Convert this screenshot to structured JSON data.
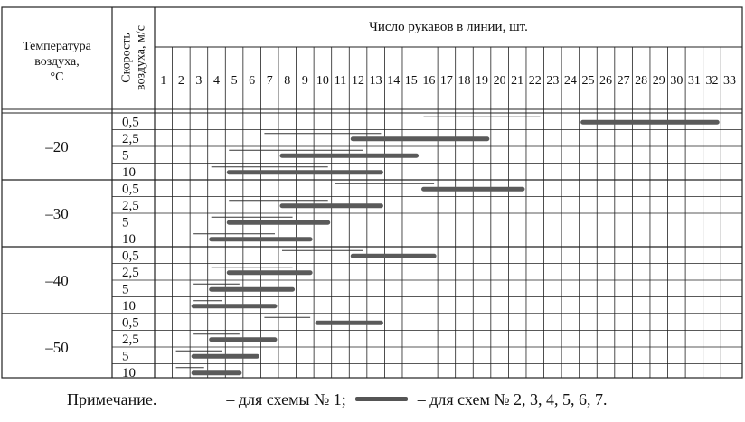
{
  "header": {
    "temperature_label_lines": [
      "Температура",
      "воздуха,",
      "°С"
    ],
    "speed_label_lines": [
      "Скорость",
      "воздуха, м/с"
    ],
    "sleeves_title": "Число рукавов в линии, шт.",
    "sleeve_numbers": [
      "1",
      "2",
      "3",
      "4",
      "5",
      "6",
      "7",
      "8",
      "9",
      "10",
      "11",
      "12",
      "13",
      "14",
      "15",
      "16",
      "17",
      "18",
      "19",
      "20",
      "21",
      "22",
      "23",
      "24",
      "25",
      "26",
      "27",
      "28",
      "29",
      "30",
      "31",
      "32",
      "33"
    ]
  },
  "groups": [
    {
      "temperature": "–20",
      "rows": [
        {
          "speed": "0,5",
          "scheme1": [
            16,
            22
          ],
          "schemes2_7": [
            25,
            32
          ]
        },
        {
          "speed": "2,5",
          "scheme1": [
            7,
            13
          ],
          "schemes2_7": [
            12,
            19
          ]
        },
        {
          "speed": "5",
          "scheme1": [
            5,
            12
          ],
          "schemes2_7": [
            8,
            15
          ]
        },
        {
          "speed": "10",
          "scheme1": [
            4,
            10
          ],
          "schemes2_7": [
            5,
            13
          ]
        }
      ]
    },
    {
      "temperature": "–30",
      "rows": [
        {
          "speed": "0,5",
          "scheme1": [
            11,
            16
          ],
          "schemes2_7": [
            16,
            21
          ]
        },
        {
          "speed": "2,5",
          "scheme1": [
            5,
            10
          ],
          "schemes2_7": [
            8,
            13
          ]
        },
        {
          "speed": "5",
          "scheme1": [
            4,
            8
          ],
          "schemes2_7": [
            5,
            10
          ]
        },
        {
          "speed": "10",
          "scheme1": [
            3,
            7
          ],
          "schemes2_7": [
            4,
            9
          ]
        }
      ]
    },
    {
      "temperature": "–40",
      "rows": [
        {
          "speed": "0,5",
          "scheme1": [
            8,
            12
          ],
          "schemes2_7": [
            12,
            16
          ]
        },
        {
          "speed": "2,5",
          "scheme1": [
            4,
            8
          ],
          "schemes2_7": [
            5,
            9
          ]
        },
        {
          "speed": "5",
          "scheme1": [
            3,
            5
          ],
          "schemes2_7": [
            4,
            8
          ]
        },
        {
          "speed": "10",
          "scheme1": [
            3,
            4
          ],
          "schemes2_7": [
            3,
            7
          ]
        }
      ]
    },
    {
      "temperature": "–50",
      "rows": [
        {
          "speed": "0,5",
          "scheme1": [
            7,
            9
          ],
          "schemes2_7": [
            10,
            13
          ]
        },
        {
          "speed": "2,5",
          "scheme1": [
            3,
            5
          ],
          "schemes2_7": [
            4,
            7
          ]
        },
        {
          "speed": "5",
          "scheme1": [
            2,
            4
          ],
          "schemes2_7": [
            3,
            6
          ]
        },
        {
          "speed": "10",
          "scheme1": [
            2,
            3
          ],
          "schemes2_7": [
            3,
            5
          ]
        }
      ]
    }
  ],
  "legend": {
    "prefix": "Примечание.",
    "scheme1_text": "– для схемы № 1;",
    "schemes_text": "– для схем № 2, 3, 4, 5, 6, 7."
  },
  "colors": {
    "grid": "#222222",
    "thin_line": "#333333",
    "thick_line": "#5a5a5a"
  }
}
